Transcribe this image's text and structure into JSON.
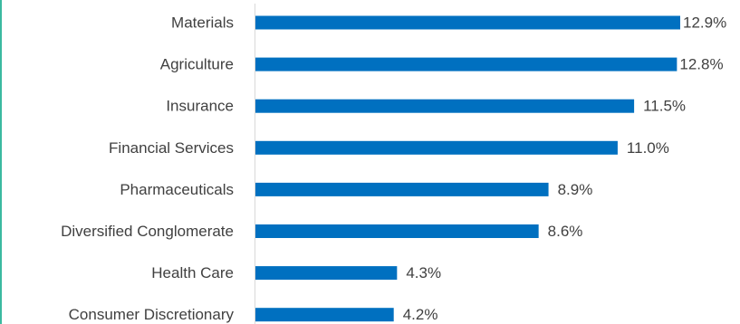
{
  "colors": {
    "bar": "#0070C0",
    "axis": "#D9D9D9",
    "text": "#404040",
    "frame_accent": "#3BB9A0"
  },
  "chart_data": {
    "type": "bar",
    "orientation": "horizontal",
    "categories": [
      "Materials",
      "Agriculture",
      "Insurance",
      "Financial Services",
      "Pharmaceuticals",
      "Diversified Conglomerate",
      "Health Care",
      "Consumer Discretionary"
    ],
    "values": [
      12.9,
      12.8,
      11.5,
      11.0,
      8.9,
      8.6,
      4.3,
      4.2
    ],
    "value_labels": [
      "12.9%",
      "12.8%",
      "11.5%",
      "11.0%",
      "8.9%",
      "8.6%",
      "4.3%",
      "4.2%"
    ],
    "xlim": [
      0,
      12.9
    ],
    "grid": false,
    "legend": "none"
  }
}
